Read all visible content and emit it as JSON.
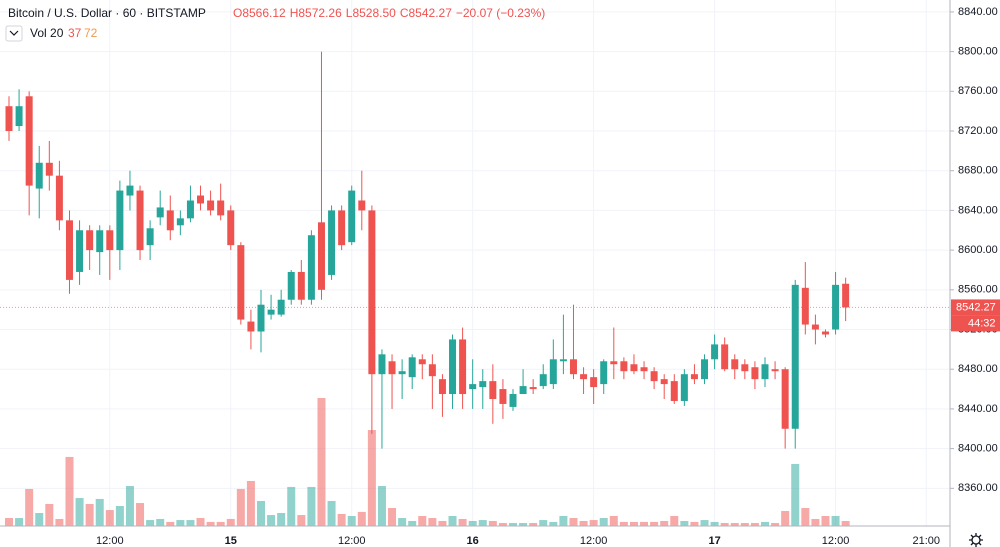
{
  "header": {
    "title": "Bitcoin / U.S. Dollar · 60 · BITSTAMP",
    "ohlc": [
      "O8566.12",
      "H8572.26",
      "L8528.50",
      "C8542.27"
    ],
    "change": "−20.07 (−0.23%)",
    "volume_legend": {
      "name": "Vol 20",
      "value": "37",
      "ma": "72"
    }
  },
  "chart_data": {
    "type": "candlestick",
    "categories": [
      null,
      null,
      null,
      null,
      null,
      null,
      null,
      null,
      null,
      null,
      "12:00",
      null,
      null,
      null,
      null,
      null,
      null,
      null,
      null,
      null,
      null,
      null,
      "15",
      null,
      null,
      null,
      null,
      null,
      null,
      null,
      null,
      null,
      null,
      null,
      "12:00",
      null,
      null,
      null,
      null,
      null,
      null,
      null,
      null,
      null,
      null,
      null,
      "16",
      null,
      null,
      null,
      null,
      null,
      null,
      null,
      null,
      null,
      null,
      null,
      "12:00",
      null,
      null,
      null,
      null,
      null,
      null,
      null,
      null,
      null,
      null,
      null,
      "17",
      null,
      null,
      null,
      null,
      null,
      null,
      null,
      null,
      null,
      null,
      null,
      "12:00",
      null,
      null,
      null,
      null,
      null,
      null,
      null,
      null,
      "21:00"
    ],
    "open": [
      8745,
      8725,
      8755,
      8662,
      8688,
      8675,
      8630,
      8578,
      8620,
      8598,
      8620,
      8600,
      8655,
      8660,
      8605,
      8633,
      8640,
      8625,
      8632,
      8655,
      8650,
      8650,
      8640,
      8605,
      8528,
      8518,
      8535,
      8535,
      8550,
      8578,
      8550,
      8628,
      8575,
      8640,
      8608,
      8650,
      8640,
      8475,
      8488,
      8475,
      8472,
      8490,
      8485,
      8470,
      8455,
      8510,
      8460,
      8462,
      8468,
      8460,
      8442,
      8455,
      8462,
      8463,
      8465,
      8488,
      8490,
      8475,
      8472,
      8465,
      8488,
      8488,
      8485,
      8482,
      8478,
      8470,
      8468,
      8448,
      8475,
      8470,
      8490,
      8505,
      8490,
      8485,
      8482,
      8470,
      8480,
      8480,
      8420,
      8562,
      8525,
      8518,
      8520,
      8566.12,
      null,
      null,
      null,
      null,
      null,
      null,
      null,
      null
    ],
    "high": [
      8755,
      8762,
      8760,
      8705,
      8710,
      8690,
      8640,
      8630,
      8625,
      8625,
      8625,
      8670,
      8680,
      8665,
      8630,
      8660,
      8655,
      8640,
      8665,
      8665,
      8660,
      8667,
      8645,
      8608,
      8540,
      8560,
      8555,
      8560,
      8580,
      8590,
      8620,
      8800,
      8645,
      8645,
      8665,
      8680,
      8645,
      8500,
      8495,
      8490,
      8495,
      8495,
      8495,
      8475,
      8515,
      8522,
      8490,
      8480,
      8485,
      8470,
      8460,
      8480,
      8470,
      8485,
      8510,
      8535,
      8545,
      8482,
      8480,
      8490,
      8522,
      8492,
      8495,
      8488,
      8482,
      8475,
      8475,
      8480,
      8485,
      8495,
      8515,
      8512,
      8495,
      8490,
      8488,
      8492,
      8488,
      8482,
      8570,
      8588,
      8535,
      8520,
      8578,
      8572.26,
      null,
      null,
      null,
      null,
      null,
      null,
      null,
      null
    ],
    "low": [
      8710,
      8720,
      8635,
      8632,
      8660,
      8620,
      8556,
      8565,
      8580,
      8575,
      8570,
      8580,
      8640,
      8590,
      8590,
      8625,
      8610,
      8615,
      8628,
      8640,
      8635,
      8630,
      8600,
      8525,
      8500,
      8497,
      8530,
      8533,
      8545,
      8545,
      8545,
      8550,
      8570,
      8600,
      8605,
      8620,
      8415,
      8400,
      8440,
      8450,
      8460,
      8470,
      8440,
      8432,
      8440,
      8440,
      8440,
      8440,
      8425,
      8430,
      8438,
      8455,
      8455,
      8460,
      8460,
      8475,
      8470,
      8455,
      8445,
      8455,
      8470,
      8470,
      8475,
      8470,
      8460,
      8450,
      8445,
      8443,
      8465,
      8465,
      8480,
      8478,
      8470,
      8470,
      8460,
      8462,
      8470,
      8400,
      8400,
      8515,
      8505,
      8512,
      8515,
      8528.5,
      null,
      null,
      null,
      null,
      null,
      null,
      null,
      null
    ],
    "close": [
      8720,
      8745,
      8665,
      8688,
      8675,
      8630,
      8570,
      8620,
      8600,
      8620,
      8600,
      8660,
      8665,
      8600,
      8622,
      8643,
      8620,
      8632,
      8650,
      8647,
      8640,
      8635,
      8605,
      8530,
      8518,
      8545,
      8540,
      8550,
      8578,
      8550,
      8615,
      8560,
      8640,
      8605,
      8660,
      8640,
      8475,
      8495,
      8475,
      8478,
      8492,
      8485,
      8473,
      8455,
      8510,
      8455,
      8465,
      8468,
      8450,
      8445,
      8455,
      8463,
      8460,
      8475,
      8490,
      8490,
      8475,
      8470,
      8462,
      8488,
      8485,
      8478,
      8478,
      8478,
      8468,
      8465,
      8448,
      8475,
      8470,
      8490,
      8505,
      8480,
      8480,
      8478,
      8470,
      8485,
      8478,
      8420,
      8565,
      8525,
      8520,
      8515,
      8565,
      8542.27,
      null,
      null,
      null,
      null,
      null,
      null,
      null,
      null
    ],
    "volume": [
      59,
      59,
      274,
      96,
      163,
      52,
      511,
      207,
      163,
      200,
      118,
      148,
      296,
      170,
      44,
      52,
      30,
      44,
      44,
      59,
      30,
      30,
      52,
      274,
      333,
      185,
      81,
      96,
      289,
      81,
      289,
      947,
      185,
      89,
      74,
      104,
      710,
      296,
      133,
      59,
      37,
      74,
      59,
      37,
      74,
      52,
      37,
      44,
      37,
      22,
      22,
      22,
      22,
      44,
      30,
      74,
      59,
      37,
      44,
      59,
      74,
      30,
      30,
      30,
      30,
      37,
      74,
      37,
      30,
      44,
      30,
      22,
      22,
      22,
      22,
      30,
      22,
      111,
      459,
      133,
      52,
      74,
      74,
      37,
      null,
      null,
      null,
      null,
      null,
      null,
      null,
      null
    ],
    "up_color": "#26a69a",
    "down_color": "#ef5350",
    "ylim": [
      8318,
      8852
    ],
    "yticks": [
      {
        "value": 8360,
        "label": "8360.00"
      },
      {
        "value": 8400,
        "label": "8400.00"
      },
      {
        "value": 8440,
        "label": "8440.00"
      },
      {
        "value": 8480,
        "label": "8480.00"
      },
      {
        "value": 8520,
        "label": "8520.00"
      },
      {
        "value": 8560,
        "label": "8560.00"
      },
      {
        "value": 8600,
        "label": "8600.00"
      },
      {
        "value": 8640,
        "label": "8640.00"
      },
      {
        "value": 8680,
        "label": "8680.00"
      },
      {
        "value": 8720,
        "label": "8720.00"
      },
      {
        "value": 8760,
        "label": "8760.00"
      },
      {
        "value": 8800,
        "label": "8800.00"
      },
      {
        "value": 8840,
        "label": "8840.00"
      }
    ],
    "grid": true,
    "last_price": {
      "value": 8542.27,
      "label": "8542.27"
    },
    "countdown": "44:32"
  }
}
